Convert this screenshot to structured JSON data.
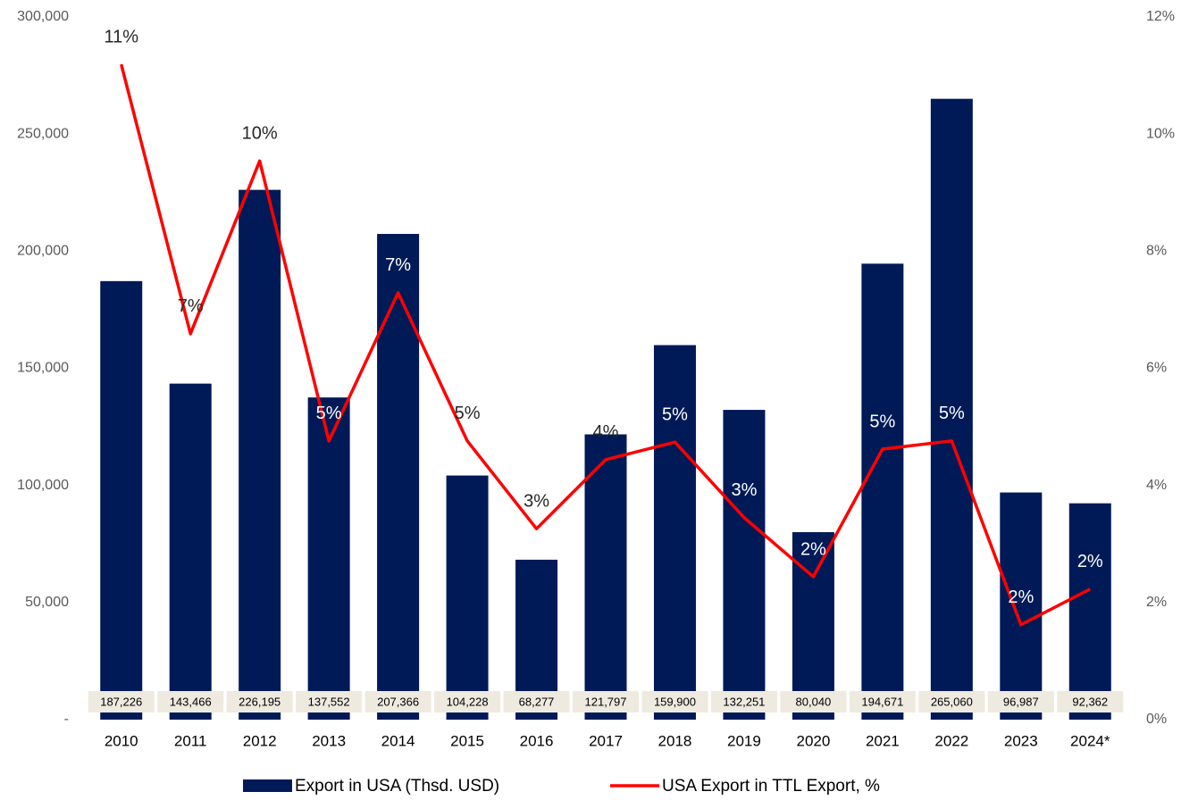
{
  "chart_data": {
    "type": "bar_line",
    "categories": [
      "2010",
      "2011",
      "2012",
      "2013",
      "2014",
      "2015",
      "2016",
      "2017",
      "2018",
      "2019",
      "2020",
      "2021",
      "2022",
      "2023",
      "2024*"
    ],
    "series": [
      {
        "name": "Export in USA (Thsd. USD)",
        "type": "bar",
        "color": "#001a57",
        "values": [
          187226,
          143466,
          226195,
          137552,
          207366,
          104228,
          68277,
          121797,
          159900,
          132251,
          80040,
          194671,
          265060,
          96987,
          92362
        ],
        "value_labels": [
          "187,226",
          "143,466",
          "226,195",
          "137,552",
          "207,366",
          "104,228",
          "68,277",
          "121,797",
          "159,900",
          "132,251",
          "80,040",
          "194,671",
          "265,060",
          "96,987",
          "92,362"
        ]
      },
      {
        "name": "USA Export in TTL Export, %",
        "type": "line",
        "axis": "y2",
        "color": "#ff0000",
        "values": [
          11.19,
          6.59,
          9.54,
          4.76,
          7.29,
          4.76,
          3.26,
          4.44,
          4.74,
          3.45,
          2.44,
          4.62,
          4.76,
          1.62,
          2.23
        ],
        "value_labels": [
          "11%",
          "7%",
          "10%",
          "5%",
          "7%",
          "5%",
          "3%",
          "4%",
          "5%",
          "3%",
          "2%",
          "5%",
          "5%",
          "2%",
          "2%"
        ]
      }
    ],
    "ylim": [
      0,
      300000
    ],
    "yticks": [
      {
        "value": 0,
        "label": "-"
      },
      {
        "value": 50000,
        "label": "50,000"
      },
      {
        "value": 100000,
        "label": "100,000"
      },
      {
        "value": 150000,
        "label": "150,000"
      },
      {
        "value": 200000,
        "label": "200,000"
      },
      {
        "value": 250000,
        "label": "250,000"
      },
      {
        "value": 300000,
        "label": "300,000"
      }
    ],
    "y2lim": [
      0,
      12
    ],
    "y2ticks": [
      {
        "value": 0,
        "label": "0%"
      },
      {
        "value": 2,
        "label": "2%"
      },
      {
        "value": 4,
        "label": "4%"
      },
      {
        "value": 6,
        "label": "6%"
      },
      {
        "value": 8,
        "label": "8%"
      },
      {
        "value": 10,
        "label": "10%"
      },
      {
        "value": 12,
        "label": "12%"
      }
    ],
    "grid": false,
    "legend": "bottom"
  }
}
